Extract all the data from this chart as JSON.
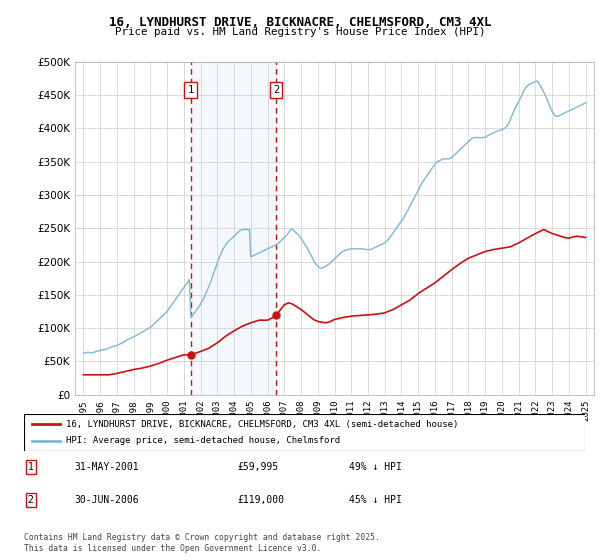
{
  "title_line1": "16, LYNDHURST DRIVE, BICKNACRE, CHELMSFORD, CM3 4XL",
  "title_line2": "Price paid vs. HM Land Registry's House Price Index (HPI)",
  "ylim": [
    0,
    500000
  ],
  "yticks": [
    0,
    50000,
    100000,
    150000,
    200000,
    250000,
    300000,
    350000,
    400000,
    450000,
    500000
  ],
  "ytick_labels": [
    "£0",
    "£50K",
    "£100K",
    "£150K",
    "£200K",
    "£250K",
    "£300K",
    "£350K",
    "£400K",
    "£450K",
    "£500K"
  ],
  "hpi_color": "#7ab8d9",
  "price_color": "#cc1111",
  "legend_price_label": "16, LYNDHURST DRIVE, BICKNACRE, CHELMSFORD, CM3 4XL (semi-detached house)",
  "legend_hpi_label": "HPI: Average price, semi-detached house, Chelmsford",
  "footnote1_label": "1",
  "footnote1_date": "31-MAY-2001",
  "footnote1_price": "£59,995",
  "footnote1_note": "49% ↓ HPI",
  "footnote2_label": "2",
  "footnote2_date": "30-JUN-2006",
  "footnote2_price": "£119,000",
  "footnote2_note": "45% ↓ HPI",
  "copyright": "Contains HM Land Registry data © Crown copyright and database right 2025.\nThis data is licensed under the Open Government Licence v3.0.",
  "sale1_year": 2001.4,
  "sale1_price": 59995,
  "sale2_year": 2006.5,
  "sale2_price": 119000,
  "shade_color": "#ddeeff",
  "grid_color": "#cccccc",
  "background_color": "#ffffff",
  "hpi_x": [
    1995.0,
    1995.08,
    1995.17,
    1995.25,
    1995.33,
    1995.42,
    1995.5,
    1995.58,
    1995.67,
    1995.75,
    1995.83,
    1995.92,
    1996.0,
    1996.08,
    1996.17,
    1996.25,
    1996.33,
    1996.42,
    1996.5,
    1996.58,
    1996.67,
    1996.75,
    1996.83,
    1996.92,
    1997.0,
    1997.08,
    1997.17,
    1997.25,
    1997.33,
    1997.42,
    1997.5,
    1997.58,
    1997.67,
    1997.75,
    1997.83,
    1997.92,
    1998.0,
    1998.08,
    1998.17,
    1998.25,
    1998.33,
    1998.42,
    1998.5,
    1998.58,
    1998.67,
    1998.75,
    1998.83,
    1998.92,
    1999.0,
    1999.08,
    1999.17,
    1999.25,
    1999.33,
    1999.42,
    1999.5,
    1999.58,
    1999.67,
    1999.75,
    1999.83,
    1999.92,
    2000.0,
    2000.08,
    2000.17,
    2000.25,
    2000.33,
    2000.42,
    2000.5,
    2000.58,
    2000.67,
    2000.75,
    2000.83,
    2000.92,
    2001.0,
    2001.08,
    2001.17,
    2001.25,
    2001.33,
    2001.42,
    2001.5,
    2001.58,
    2001.67,
    2001.75,
    2001.83,
    2001.92,
    2002.0,
    2002.08,
    2002.17,
    2002.25,
    2002.33,
    2002.42,
    2002.5,
    2002.58,
    2002.67,
    2002.75,
    2002.83,
    2002.92,
    2003.0,
    2003.08,
    2003.17,
    2003.25,
    2003.33,
    2003.42,
    2003.5,
    2003.58,
    2003.67,
    2003.75,
    2003.83,
    2003.92,
    2004.0,
    2004.08,
    2004.17,
    2004.25,
    2004.33,
    2004.42,
    2004.5,
    2004.58,
    2004.67,
    2004.75,
    2004.83,
    2004.92,
    2005.0,
    2005.08,
    2005.17,
    2005.25,
    2005.33,
    2005.42,
    2005.5,
    2005.58,
    2005.67,
    2005.75,
    2005.83,
    2005.92,
    2006.0,
    2006.08,
    2006.17,
    2006.25,
    2006.33,
    2006.42,
    2006.5,
    2006.58,
    2006.67,
    2006.75,
    2006.83,
    2006.92,
    2007.0,
    2007.08,
    2007.17,
    2007.25,
    2007.33,
    2007.42,
    2007.5,
    2007.58,
    2007.67,
    2007.75,
    2007.83,
    2007.92,
    2008.0,
    2008.08,
    2008.17,
    2008.25,
    2008.33,
    2008.42,
    2008.5,
    2008.58,
    2008.67,
    2008.75,
    2008.83,
    2008.92,
    2009.0,
    2009.08,
    2009.17,
    2009.25,
    2009.33,
    2009.42,
    2009.5,
    2009.58,
    2009.67,
    2009.75,
    2009.83,
    2009.92,
    2010.0,
    2010.08,
    2010.17,
    2010.25,
    2010.33,
    2010.42,
    2010.5,
    2010.58,
    2010.67,
    2010.75,
    2010.83,
    2010.92,
    2011.0,
    2011.08,
    2011.17,
    2011.25,
    2011.33,
    2011.42,
    2011.5,
    2011.58,
    2011.67,
    2011.75,
    2011.83,
    2011.92,
    2012.0,
    2012.08,
    2012.17,
    2012.25,
    2012.33,
    2012.42,
    2012.5,
    2012.58,
    2012.67,
    2012.75,
    2012.83,
    2012.92,
    2013.0,
    2013.08,
    2013.17,
    2013.25,
    2013.33,
    2013.42,
    2013.5,
    2013.58,
    2013.67,
    2013.75,
    2013.83,
    2013.92,
    2014.0,
    2014.08,
    2014.17,
    2014.25,
    2014.33,
    2014.42,
    2014.5,
    2014.58,
    2014.67,
    2014.75,
    2014.83,
    2014.92,
    2015.0,
    2015.08,
    2015.17,
    2015.25,
    2015.33,
    2015.42,
    2015.5,
    2015.58,
    2015.67,
    2015.75,
    2015.83,
    2015.92,
    2016.0,
    2016.08,
    2016.17,
    2016.25,
    2016.33,
    2016.42,
    2016.5,
    2016.58,
    2016.67,
    2016.75,
    2016.83,
    2016.92,
    2017.0,
    2017.08,
    2017.17,
    2017.25,
    2017.33,
    2017.42,
    2017.5,
    2017.58,
    2017.67,
    2017.75,
    2017.83,
    2017.92,
    2018.0,
    2018.08,
    2018.17,
    2018.25,
    2018.33,
    2018.42,
    2018.5,
    2018.58,
    2018.67,
    2018.75,
    2018.83,
    2018.92,
    2019.0,
    2019.08,
    2019.17,
    2019.25,
    2019.33,
    2019.42,
    2019.5,
    2019.58,
    2019.67,
    2019.75,
    2019.83,
    2019.92,
    2020.0,
    2020.08,
    2020.17,
    2020.25,
    2020.33,
    2020.42,
    2020.5,
    2020.58,
    2020.67,
    2020.75,
    2020.83,
    2020.92,
    2021.0,
    2021.08,
    2021.17,
    2021.25,
    2021.33,
    2021.42,
    2021.5,
    2021.58,
    2021.67,
    2021.75,
    2021.83,
    2021.92,
    2022.0,
    2022.08,
    2022.17,
    2022.25,
    2022.33,
    2022.42,
    2022.5,
    2022.58,
    2022.67,
    2022.75,
    2022.83,
    2022.92,
    2023.0,
    2023.08,
    2023.17,
    2023.25,
    2023.33,
    2023.42,
    2023.5,
    2023.58,
    2023.67,
    2023.75,
    2023.83,
    2023.92,
    2024.0,
    2024.08,
    2024.17,
    2024.25,
    2024.33,
    2024.42,
    2024.5,
    2024.58,
    2024.67,
    2024.75,
    2024.83,
    2024.92,
    2025.0
  ],
  "hpi_y": [
    63000,
    62500,
    63000,
    64000,
    63500,
    63000,
    62500,
    63500,
    64000,
    65000,
    65500,
    66000,
    66500,
    67000,
    67500,
    68000,
    68500,
    69000,
    70000,
    71000,
    71500,
    72000,
    73000,
    73500,
    74000,
    75000,
    76000,
    77000,
    78000,
    79000,
    80500,
    82000,
    83000,
    84000,
    85000,
    86000,
    87000,
    88000,
    89000,
    90000,
    91500,
    93000,
    94000,
    95000,
    96500,
    98000,
    99000,
    100000,
    101000,
    103000,
    105000,
    107000,
    109000,
    111000,
    113000,
    115000,
    117000,
    119000,
    121000,
    123000,
    125000,
    128000,
    131000,
    134000,
    137000,
    140000,
    143000,
    146000,
    149000,
    152000,
    155000,
    158000,
    161000,
    164000,
    167000,
    170000,
    173000,
    117000,
    119000,
    121000,
    124000,
    127000,
    130000,
    133000,
    136000,
    140000,
    144000,
    148000,
    153000,
    158000,
    163000,
    168000,
    174000,
    180000,
    186000,
    192000,
    198000,
    204000,
    209000,
    214000,
    218000,
    222000,
    225000,
    228000,
    230000,
    232000,
    234000,
    236000,
    238000,
    240000,
    242000,
    244000,
    246000,
    247000,
    248000,
    248000,
    248000,
    248000,
    248000,
    248000,
    207000,
    208000,
    209000,
    210000,
    211000,
    212000,
    213000,
    214000,
    215000,
    216000,
    217000,
    218000,
    219000,
    220000,
    221000,
    222000,
    223000,
    224000,
    225000,
    226000,
    228000,
    230000,
    232000,
    234000,
    236000,
    238000,
    240000,
    243000,
    246000,
    249000,
    248000,
    246000,
    244000,
    242000,
    240000,
    238000,
    235000,
    232000,
    228000,
    225000,
    222000,
    218000,
    214000,
    210000,
    206000,
    202000,
    198000,
    195000,
    193000,
    191000,
    190000,
    190000,
    191000,
    192000,
    193000,
    195000,
    196000,
    198000,
    200000,
    202000,
    204000,
    206000,
    208000,
    210000,
    212000,
    214000,
    215000,
    216000,
    217000,
    218000,
    218000,
    219000,
    219000,
    219000,
    219000,
    219000,
    219000,
    219000,
    219000,
    219000,
    219000,
    219000,
    218000,
    218000,
    218000,
    218000,
    218000,
    219000,
    220000,
    221000,
    222000,
    223000,
    224000,
    225000,
    226000,
    227000,
    228000,
    230000,
    232000,
    234000,
    237000,
    240000,
    243000,
    246000,
    249000,
    252000,
    255000,
    258000,
    261000,
    264000,
    267000,
    271000,
    275000,
    279000,
    283000,
    287000,
    291000,
    295000,
    299000,
    303000,
    307000,
    311000,
    315000,
    319000,
    322000,
    325000,
    328000,
    331000,
    334000,
    337000,
    340000,
    343000,
    346000,
    349000,
    350000,
    351000,
    352000,
    353000,
    354000,
    354000,
    354000,
    354000,
    354000,
    355000,
    356000,
    358000,
    360000,
    362000,
    364000,
    366000,
    368000,
    370000,
    372000,
    374000,
    376000,
    378000,
    380000,
    382000,
    384000,
    385000,
    386000,
    386000,
    386000,
    386000,
    386000,
    386000,
    386000,
    386000,
    387000,
    388000,
    389000,
    390000,
    391000,
    392000,
    393000,
    394000,
    395000,
    396000,
    397000,
    397000,
    398000,
    399000,
    400000,
    402000,
    404000,
    408000,
    413000,
    418000,
    423000,
    428000,
    432000,
    436000,
    440000,
    444000,
    448000,
    453000,
    457000,
    461000,
    463000,
    465000,
    466000,
    467000,
    468000,
    469000,
    470000,
    471000,
    469000,
    466000,
    462000,
    458000,
    454000,
    450000,
    445000,
    440000,
    435000,
    430000,
    425000,
    422000,
    419000,
    418000,
    418000,
    419000,
    420000,
    421000,
    422000,
    423000,
    424000,
    425000,
    426000,
    427000,
    428000,
    429000,
    430000,
    431000,
    432000,
    433000,
    434000,
    435000,
    436000,
    437000,
    438000
  ],
  "price_x": [
    1995.0,
    1995.5,
    1996.0,
    1996.5,
    1997.0,
    1997.5,
    1998.0,
    1998.5,
    1999.0,
    1999.5,
    2000.0,
    2000.5,
    2001.0,
    2001.42,
    2002.0,
    2002.5,
    2003.0,
    2003.5,
    2004.0,
    2004.5,
    2005.0,
    2005.25,
    2005.5,
    2005.75,
    2006.0,
    2006.25,
    2006.5,
    2007.0,
    2007.25,
    2007.5,
    2007.75,
    2008.0,
    2008.25,
    2008.5,
    2008.75,
    2009.0,
    2009.25,
    2009.5,
    2009.75,
    2010.0,
    2010.5,
    2011.0,
    2011.5,
    2012.0,
    2012.5,
    2013.0,
    2013.5,
    2014.0,
    2014.5,
    2015.0,
    2015.5,
    2016.0,
    2016.5,
    2017.0,
    2017.5,
    2018.0,
    2018.5,
    2019.0,
    2019.5,
    2020.0,
    2020.5,
    2021.0,
    2021.5,
    2022.0,
    2022.25,
    2022.5,
    2022.75,
    2023.0,
    2023.25,
    2023.5,
    2023.75,
    2024.0,
    2024.25,
    2024.5,
    2024.75,
    2025.0
  ],
  "price_y": [
    30000,
    30000,
    30000,
    30000,
    32000,
    35000,
    38000,
    40000,
    43000,
    47000,
    52000,
    56000,
    60000,
    59995,
    65000,
    70000,
    78000,
    88000,
    96000,
    103000,
    108000,
    110000,
    112000,
    112000,
    112000,
    115000,
    119000,
    135000,
    138000,
    136000,
    132000,
    128000,
    123000,
    118000,
    113000,
    110000,
    109000,
    108000,
    110000,
    113000,
    116000,
    118000,
    119000,
    120000,
    121000,
    123000,
    128000,
    135000,
    142000,
    152000,
    160000,
    168000,
    178000,
    188000,
    197000,
    205000,
    210000,
    215000,
    218000,
    220000,
    222000,
    228000,
    235000,
    242000,
    245000,
    248000,
    245000,
    242000,
    240000,
    238000,
    236000,
    235000,
    237000,
    238000,
    237000,
    236000
  ]
}
